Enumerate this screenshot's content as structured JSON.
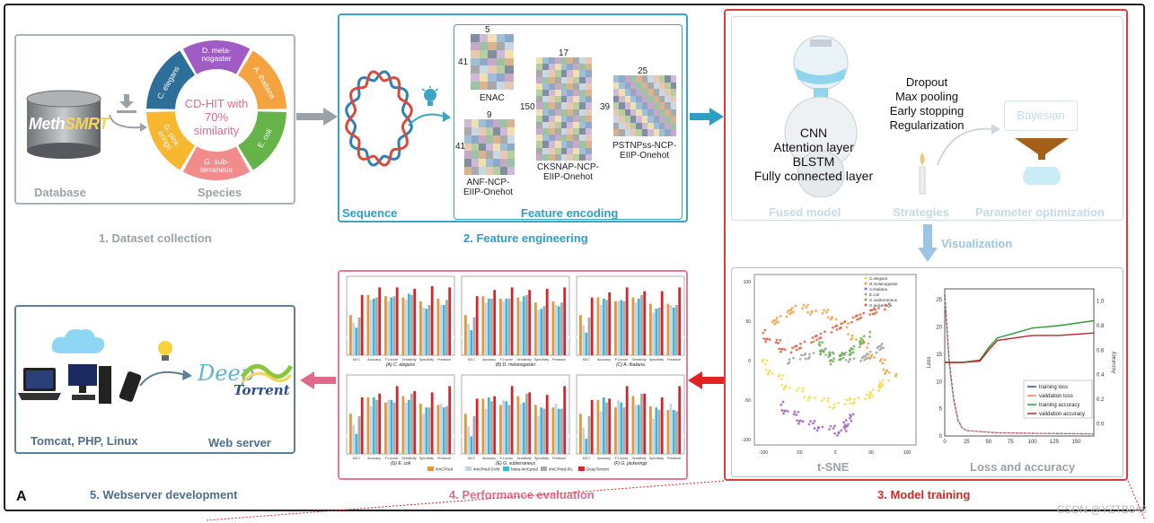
{
  "figure": {
    "panel_letter": "A",
    "watermark": "CSDN @YZTB848"
  },
  "dataset": {
    "title": "1. Dataset collection",
    "database_label": "Database",
    "species_label": "Species",
    "db_name_part1": "Meth",
    "db_name_part2": "SMRT",
    "center_text": [
      "CD-HIT with",
      "70%",
      "similarity"
    ],
    "species_segments": [
      {
        "label": "D. mela-\nnogaster",
        "color": "#a05cc4"
      },
      {
        "label": "A. thaliana",
        "color": "#f4a340"
      },
      {
        "label": "E. coli",
        "color": "#66b34a"
      },
      {
        "label": "G. sub-\nterraneus",
        "color": "#f28c8c"
      },
      {
        "label": "G. pick-\neringii",
        "color": "#f7b72f"
      },
      {
        "label": "C. elegans",
        "color": "#2e6f9a"
      }
    ]
  },
  "feature": {
    "title": "2. Feature engineering",
    "sequence_label": "Sequence",
    "encoding_label": "Feature encoding",
    "matrices": [
      {
        "name": "ENAC",
        "cols_label": "5",
        "rows_label": "41"
      },
      {
        "name": "ANF-NCP-\nEIIP-Onehot",
        "cols_label": "9",
        "rows_label": "41"
      },
      {
        "name": "CKSNAP-NCP-\nEIIP-Onehot",
        "cols_label": "17",
        "rows_label": "150"
      },
      {
        "name": "PSTNPss-NCP-\nEIIP-Onehot",
        "cols_label": "25",
        "rows_label": "39"
      }
    ]
  },
  "model": {
    "title": "3. Model training",
    "fused_label": "Fused model",
    "strategies_label": "Strategies",
    "param_label": "Parameter optimization",
    "layers": [
      "CNN",
      "Attention layer",
      "BLSTM",
      "Fully connected layer"
    ],
    "strategies": [
      "Dropout",
      "Max pooling",
      "Early stopping",
      "Regularization"
    ],
    "bayesian_label": "Bayesian",
    "visualization_label": "Visualization",
    "tsne_label": "t-SNE",
    "loss_label": "Loss and accuracy"
  },
  "performance": {
    "title": "4. Performance evaluation",
    "subplots": [
      "(A) C. elegans",
      "(B) D. melanogaster",
      "(C) A. thaliana",
      "(D) E. coli",
      "(E) G. subterraneus",
      "(F) G. pickeringii"
    ],
    "metrics": [
      "MCC",
      "Accuracy",
      "F1-score",
      "Sensitivity",
      "Specificity",
      "Precision"
    ],
    "legend": [
      {
        "name": "4mCPred",
        "color": "#e8963a"
      },
      {
        "name": "4mcPred-SVM",
        "color": "#bcd6ea"
      },
      {
        "name": "Meta-4mCpred",
        "color": "#3fb6d9"
      },
      {
        "name": "4mCPred-IFL",
        "color": "#a9a9a9"
      },
      {
        "name": "DeepTorrent",
        "color": "#d6242a"
      }
    ]
  },
  "webserver": {
    "title": "5. Webserver development",
    "stack_label": "Tomcat, PHP, Linux",
    "server_label": "Web server",
    "logo_deep": "Deep",
    "logo_torrent": "Torrent"
  },
  "chart_data": [
    {
      "type": "line",
      "xlabel": "",
      "ylabel": "Loss",
      "y2label": "Accuracy",
      "xlim": [
        0,
        170
      ],
      "ylim": [
        0,
        27
      ],
      "y2lim": [
        -0.1,
        1.1
      ],
      "x_ticks": [
        0,
        25,
        50,
        75,
        100,
        125,
        150
      ],
      "y_ticks": [
        0,
        5,
        10,
        15,
        20,
        25
      ],
      "y2_ticks": [
        0.0,
        0.2,
        0.4,
        0.6,
        0.8,
        1.0
      ],
      "legend": [
        "training loss",
        "validation loss",
        "training accuracy",
        "validation accuracy"
      ],
      "series": [
        {
          "name": "training loss",
          "color": "#1f4e9a",
          "x": [
            0,
            5,
            10,
            15,
            20,
            25,
            40,
            60,
            100,
            170
          ],
          "y": [
            26,
            14,
            7,
            3,
            1.5,
            1.0,
            0.8,
            0.6,
            0.5,
            0.4
          ]
        },
        {
          "name": "validation loss",
          "color": "#f08060",
          "x": [
            0,
            5,
            10,
            15,
            20,
            25,
            40,
            60,
            100,
            170
          ],
          "y": [
            25,
            13,
            6.5,
            2.8,
            1.4,
            1.0,
            0.8,
            0.6,
            0.5,
            0.4
          ]
        },
        {
          "name": "training accuracy",
          "color": "#2e9a3a",
          "x": [
            0,
            20,
            40,
            50,
            60,
            80,
            100,
            130,
            170
          ],
          "y": [
            0.5,
            0.5,
            0.52,
            0.62,
            0.7,
            0.74,
            0.78,
            0.8,
            0.84
          ]
        },
        {
          "name": "validation accuracy",
          "color": "#c0202a",
          "x": [
            0,
            20,
            40,
            50,
            60,
            80,
            100,
            130,
            170
          ],
          "y": [
            0.5,
            0.5,
            0.51,
            0.6,
            0.68,
            0.7,
            0.72,
            0.72,
            0.74
          ]
        }
      ]
    },
    {
      "type": "scatter",
      "title": "t-SNE",
      "x_ticks": [
        -100,
        -50,
        0,
        50,
        100
      ],
      "y_ticks": [
        -100,
        -50,
        0,
        50,
        100
      ],
      "legend": [
        "C.elegans",
        "D.melanogaster",
        "A.thaliana",
        "E.coli",
        "G.subterraneus",
        "G.pickeringii"
      ]
    },
    {
      "type": "bar",
      "categories": [
        "MCC",
        "Accuracy",
        "F1-score",
        "Sensitivity",
        "Specificity",
        "Precision"
      ],
      "series": [
        {
          "name": "4mCPred",
          "values": [
            0.72,
            0.88,
            0.87,
            0.86,
            0.83,
            0.85
          ]
        },
        {
          "name": "4mcPred-SVM",
          "values": [
            0.66,
            0.84,
            0.83,
            0.84,
            0.78,
            0.8
          ]
        },
        {
          "name": "Meta-4mCpred",
          "values": [
            0.62,
            0.85,
            0.86,
            0.89,
            0.77,
            0.8
          ]
        },
        {
          "name": "4mCPred-IFL",
          "values": [
            0.7,
            0.86,
            0.87,
            0.88,
            0.8,
            0.84
          ]
        },
        {
          "name": "DeepTorrent",
          "values": [
            0.88,
            0.94,
            0.94,
            0.93,
            0.95,
            0.94
          ]
        }
      ]
    }
  ]
}
